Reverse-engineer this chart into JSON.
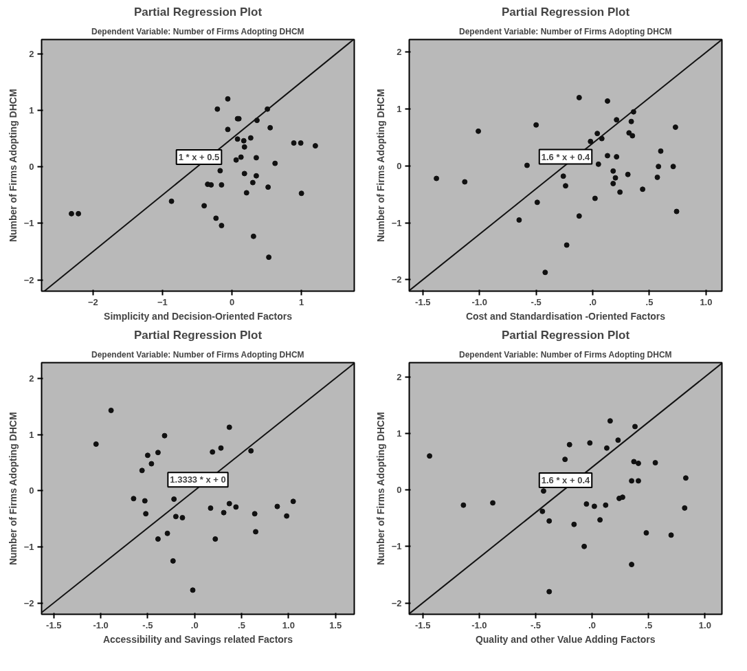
{
  "chart_data": [
    {
      "type": "scatter",
      "title": "Partial Regression Plot",
      "subtitle": "Dependent Variable: Number of Firms Adopting DHCM",
      "xlabel": "Simplicity and Decision-Oriented Factors",
      "ylabel": "Number of Firms Adopting DHCM",
      "xlim": [
        -2.74,
        1.76
      ],
      "ylim": [
        -2.2,
        2.25
      ],
      "xticks": [
        -2,
        -1,
        0,
        1
      ],
      "yticks": [
        -2,
        -1,
        0,
        1,
        2
      ],
      "grid": false,
      "annotations": [
        "1 * x + 0.5"
      ],
      "series": [
        {
          "marker": "circle",
          "color": "#111111",
          "x": [
            -2.31,
            -2.21,
            -0.87,
            -0.21,
            -0.06,
            -0.06,
            0.08,
            0.1,
            0.08,
            0.17,
            0.27,
            0.18,
            0.06,
            0.13,
            0.36,
            0.51,
            0.55,
            0.35,
            0.62,
            -0.17,
            -0.35,
            -0.3,
            -0.15,
            0.18,
            0.35,
            0.3,
            0.21,
            0.52,
            -0.4,
            -0.23,
            -0.15,
            0.31,
            0.53,
            0.89,
            0.99,
            1.2,
            1.0
          ],
          "values": [
            -0.83,
            -0.83,
            -0.61,
            1.02,
            1.2,
            0.66,
            0.85,
            0.85,
            0.49,
            0.46,
            0.51,
            0.35,
            0.12,
            0.17,
            0.82,
            1.02,
            0.69,
            0.16,
            0.06,
            -0.07,
            -0.31,
            -0.32,
            -0.32,
            -0.12,
            -0.16,
            -0.28,
            -0.46,
            -0.36,
            -0.69,
            -0.91,
            -1.04,
            -1.23,
            -1.6,
            0.42,
            0.42,
            0.37,
            -0.47
          ]
        },
        {
          "type": "line",
          "color": "#111111",
          "line_style": "solid",
          "x": [
            -2.7,
            1.75
          ],
          "values": [
            -2.2,
            2.25
          ]
        }
      ]
    },
    {
      "type": "scatter",
      "title": "Partial Regression Plot",
      "subtitle": "Dependent Variable: Number of Firms Adopting DHCM",
      "xlabel": "Cost and Standardisation -Oriented Factors",
      "ylabel": "Number of Firms Adopting DHCM",
      "xlim": [
        -1.62,
        1.14
      ],
      "ylim": [
        -2.2,
        2.22
      ],
      "xticks": [
        {
          "value": -1.5,
          "label": "-1.5"
        },
        {
          "value": -1.0,
          "label": "-1.0"
        },
        {
          "value": -0.5,
          "label": "-.5"
        },
        {
          "value": 0,
          "label": ".0"
        },
        {
          "value": 0.5,
          "label": ".5"
        },
        {
          "value": 1.0,
          "label": "1.0"
        }
      ],
      "yticks": [
        -2,
        -1,
        0,
        1,
        2
      ],
      "grid": false,
      "annotations": [
        "1.6 * x + 0.4"
      ],
      "series": [
        {
          "marker": "circle",
          "color": "#111111",
          "x": [
            -1.38,
            -1.13,
            -1.01,
            -0.58,
            -0.5,
            -0.49,
            -0.65,
            -0.12,
            -0.26,
            -0.24,
            -0.12,
            -0.23,
            -0.42,
            0.13,
            -0.02,
            0.04,
            0.08,
            0.05,
            0.13,
            0.21,
            0.21,
            0.18,
            0.2,
            0.18,
            0.24,
            0.02,
            0.31,
            0.32,
            0.35,
            0.34,
            0.36,
            0.44,
            0.6,
            0.58,
            0.57,
            0.71,
            0.73,
            0.74
          ],
          "values": [
            -0.22,
            -0.28,
            0.61,
            0.01,
            0.72,
            -0.64,
            -0.95,
            1.2,
            -0.18,
            -0.35,
            -0.88,
            -1.39,
            -1.87,
            1.14,
            0.43,
            0.57,
            0.48,
            0.03,
            0.18,
            0.16,
            0.81,
            -0.09,
            -0.21,
            -0.31,
            -0.46,
            -0.57,
            -0.15,
            0.58,
            0.53,
            0.78,
            0.95,
            -0.41,
            0.26,
            -0.01,
            -0.2,
            -0.01,
            0.68,
            -0.8
          ]
        },
        {
          "type": "line",
          "color": "#111111",
          "line_style": "solid",
          "x": [
            -1.62,
            1.14
          ],
          "values": [
            -2.19,
            2.22
          ]
        }
      ]
    },
    {
      "type": "scatter",
      "title": "Partial Regression Plot",
      "subtitle": "Dependent Variable: Number of Firms Adopting DHCM",
      "xlabel": "Accessibility and Savings related Factors",
      "ylabel": "Number of Firms Adopting DHCM",
      "xlim": [
        -1.63,
        1.7
      ],
      "ylim": [
        -2.2,
        2.28
      ],
      "xticks": [
        {
          "value": -1.5,
          "label": "-1.5"
        },
        {
          "value": -1.0,
          "label": "-1.0"
        },
        {
          "value": -0.5,
          "label": "-.5"
        },
        {
          "value": 0,
          "label": ".0"
        },
        {
          "value": 0.5,
          "label": ".5"
        },
        {
          "value": 1.0,
          "label": "1.0"
        },
        {
          "value": 1.5,
          "label": "1.5"
        }
      ],
      "yticks": [
        -2,
        -1,
        0,
        1,
        2
      ],
      "grid": false,
      "annotations": [
        "1.3333 * x + 0"
      ],
      "series": [
        {
          "marker": "circle",
          "color": "#111111",
          "x": [
            -1.05,
            -0.89,
            -0.65,
            -0.56,
            -0.5,
            -0.46,
            -0.53,
            -0.52,
            -0.39,
            -0.32,
            -0.39,
            -0.29,
            -0.22,
            -0.2,
            -0.13,
            -0.23,
            -0.02,
            0.17,
            0.19,
            0.22,
            0.28,
            0.31,
            0.37,
            0.37,
            0.44,
            0.6,
            0.64,
            0.65,
            0.88,
            0.98,
            1.05
          ],
          "values": [
            0.83,
            1.43,
            -0.14,
            0.36,
            0.63,
            0.48,
            -0.18,
            -0.41,
            0.68,
            0.98,
            -0.86,
            -0.76,
            -0.15,
            -0.46,
            -0.48,
            -1.25,
            -1.77,
            -0.31,
            0.69,
            -0.86,
            0.76,
            -0.39,
            1.13,
            -0.23,
            -0.29,
            0.71,
            -0.41,
            -0.73,
            -0.28,
            -0.45,
            -0.19
          ]
        },
        {
          "type": "line",
          "color": "#111111",
          "line_style": "solid",
          "x": [
            -1.63,
            1.7
          ],
          "values": [
            -2.17,
            2.27
          ]
        }
      ]
    },
    {
      "type": "scatter",
      "title": "Partial Regression Plot",
      "subtitle": "Dependent Variable: Number of Firms Adopting DHCM",
      "xlabel": "Quality and other Value Adding Factors",
      "ylabel": "Number of Firms Adopting DHCM",
      "xlim": [
        -1.62,
        1.15
      ],
      "ylim": [
        -2.2,
        2.25
      ],
      "xticks": [
        {
          "value": -1.5,
          "label": "-1.5"
        },
        {
          "value": -1.0,
          "label": "-1.0"
        },
        {
          "value": -0.5,
          "label": "-.5"
        },
        {
          "value": 0,
          "label": ".0"
        },
        {
          "value": 0.5,
          "label": ".5"
        },
        {
          "value": 1.0,
          "label": "1.0"
        }
      ],
      "yticks": [
        -2,
        -1,
        0,
        1,
        2
      ],
      "grid": false,
      "annotations": [
        "1.6 * x + 0.4"
      ],
      "series": [
        {
          "marker": "circle",
          "color": "#111111",
          "x": [
            -1.44,
            -1.14,
            -0.88,
            -0.44,
            -0.43,
            -0.38,
            -0.38,
            -0.2,
            -0.24,
            -0.16,
            -0.07,
            -0.02,
            -0.05,
            0.02,
            0.07,
            0.13,
            0.16,
            0.12,
            0.23,
            0.24,
            0.27,
            0.35,
            0.35,
            0.41,
            0.37,
            0.41,
            0.38,
            0.48,
            0.56,
            0.7,
            0.83,
            0.82
          ],
          "values": [
            0.6,
            -0.27,
            -0.23,
            -0.38,
            -0.02,
            -0.55,
            -1.8,
            0.8,
            0.54,
            -0.61,
            -1.0,
            0.83,
            -0.25,
            -0.29,
            -0.53,
            0.74,
            1.22,
            -0.27,
            0.88,
            -0.15,
            -0.13,
            -1.32,
            0.16,
            0.16,
            0.5,
            0.47,
            1.12,
            -0.76,
            0.48,
            -0.8,
            0.21,
            -0.32
          ]
        },
        {
          "type": "line",
          "color": "#111111",
          "line_style": "solid",
          "x": [
            -1.62,
            1.15
          ],
          "values": [
            -2.19,
            2.24
          ]
        }
      ]
    }
  ]
}
